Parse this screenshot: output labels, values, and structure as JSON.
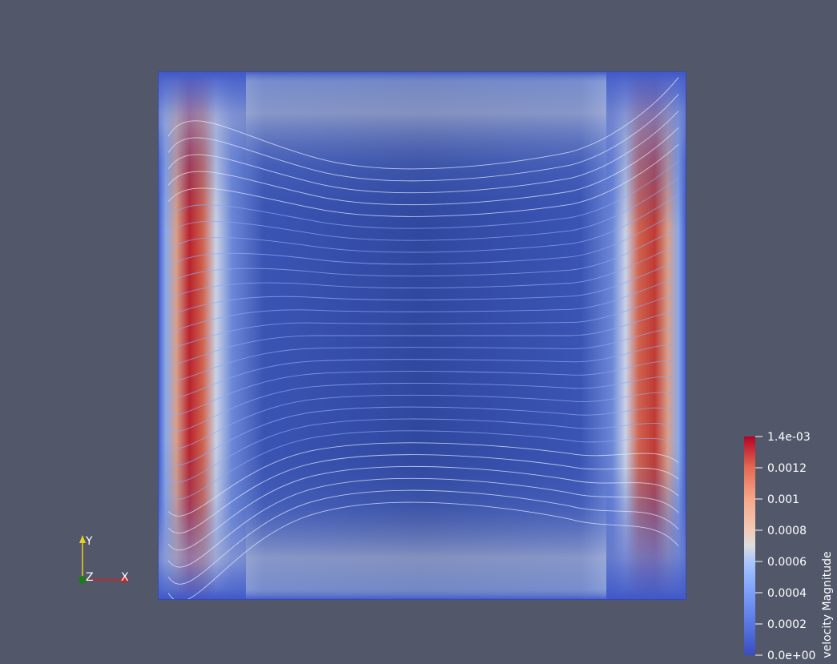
{
  "colormap": {
    "title": "velocity Magnitude",
    "range": [
      0.0,
      0.0014
    ],
    "colors": {
      "low": "#3b4cc0",
      "mid": "#dddddd",
      "high": "#b40426",
      "background": "#525769"
    },
    "ticks": [
      {
        "value": 0.0014,
        "label": "1.4e-03"
      },
      {
        "value": 0.0012,
        "label": "0.0012"
      },
      {
        "value": 0.001,
        "label": "0.001"
      },
      {
        "value": 0.0008,
        "label": "0.0008"
      },
      {
        "value": 0.0006,
        "label": "0.0006"
      },
      {
        "value": 0.0004,
        "label": "0.0004"
      },
      {
        "value": 0.0002,
        "label": "0.0002"
      },
      {
        "value": 0.0,
        "label": "0.0e+00"
      }
    ]
  },
  "orientation_axes": {
    "x_label": "X",
    "y_label": "Y",
    "z_label": "Z",
    "x_color": "#d62020",
    "y_color": "#e6d21e",
    "z_color": "#1e7a1e"
  },
  "chart_data": {
    "type": "heatmap",
    "field": "velocity Magnitude",
    "xlim": [
      0,
      1
    ],
    "ylim": [
      0,
      1
    ],
    "vmin": 0.0,
    "vmax": 0.0014,
    "hotspots": [
      {
        "x": 0.05,
        "y": 0.5,
        "value": 0.0014
      },
      {
        "x": 0.95,
        "y": 0.55,
        "value": 0.0012
      }
    ],
    "contour_lines": 30
  }
}
